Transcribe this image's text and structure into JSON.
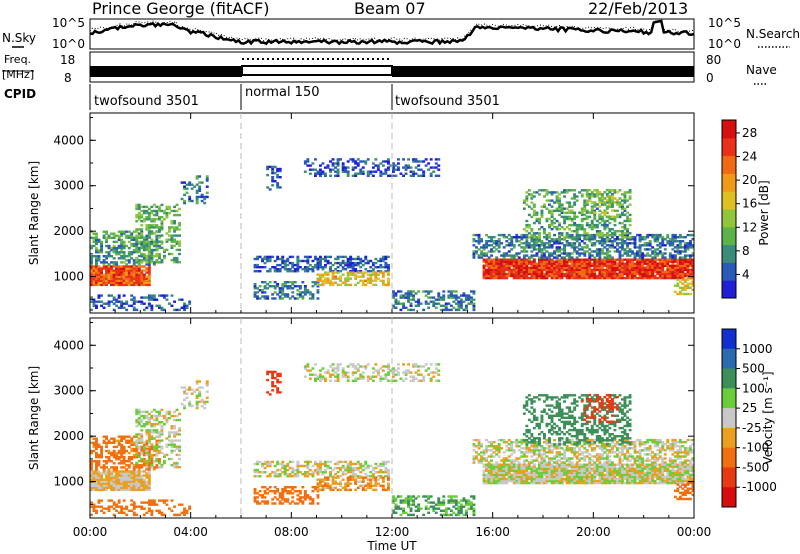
{
  "header": {
    "station": "Prince George (fitACF)",
    "beam": "Beam 07",
    "date": "22/Feb/2013"
  },
  "top_panels": {
    "nsky_label": "N.Sky",
    "nsearch_label": "N.Search",
    "noise_ticks": [
      "10^5",
      "10^0"
    ],
    "freq_label_line1": "Freq.",
    "freq_label_line2": "[MHz]",
    "freq_ticks": [
      "18",
      "8"
    ],
    "nave_label": "Nave",
    "nave_ticks": [
      "80",
      "0"
    ],
    "cpid_label": "CPID",
    "cpid_segments": [
      {
        "label": "twofsound 3501",
        "start": 0,
        "end": 6
      },
      {
        "label": "normal 150",
        "start": 6,
        "end": 12
      },
      {
        "label": "twofsound 3501",
        "start": 12,
        "end": 24
      }
    ]
  },
  "chart_data": [
    {
      "type": "heatmap",
      "ylabel": "Slant Range [km]",
      "xlabel": "Time UT",
      "xlim": [
        0,
        24
      ],
      "ylim": [
        200,
        4600
      ],
      "yticks": [
        "1000",
        "2000",
        "3000",
        "4000"
      ],
      "xticks": [
        "00:00",
        "04:00",
        "08:00",
        "12:00",
        "16:00",
        "20:00",
        "00:00"
      ],
      "colorbar": {
        "label": "Power [dB]",
        "ticks": [
          "4",
          "8",
          "12",
          "16",
          "20",
          "24",
          "28"
        ],
        "colors": [
          "#1f1fd6",
          "#2a5ab8",
          "#3a8b7a",
          "#5cb34a",
          "#8fc63c",
          "#e0c020",
          "#f09a18",
          "#f06a14",
          "#e8301a",
          "#d80f0f"
        ]
      }
    },
    {
      "type": "heatmap",
      "ylabel": "Slant Range [km]",
      "xlabel": "Time UT",
      "xlim": [
        0,
        24
      ],
      "ylim": [
        200,
        4600
      ],
      "yticks": [
        "1000",
        "2000",
        "3000",
        "4000"
      ],
      "xticks": [
        "00:00",
        "04:00",
        "08:00",
        "12:00",
        "16:00",
        "20:00",
        "00:00"
      ],
      "colorbar": {
        "label": "Velocity [m s⁻¹]",
        "ticks": [
          "1000",
          "500",
          "100",
          "25",
          "-25",
          "-100",
          "-500",
          "-1000"
        ],
        "colors": [
          "#1030d0",
          "#2a6ab0",
          "#3d8f5a",
          "#6acd3a",
          "#c8c8c8",
          "#e9a020",
          "#f07010",
          "#e83a12",
          "#d80c0c"
        ]
      }
    }
  ],
  "echo_regions": [
    {
      "t0": 0.0,
      "t1": 2.4,
      "r0": 800,
      "r1": 1250,
      "power": 24,
      "velocity": -40,
      "density": 0.95
    },
    {
      "t0": 0.0,
      "t1": 2.8,
      "r0": 1250,
      "r1": 2000,
      "power": 10,
      "velocity": -150,
      "density": 0.55
    },
    {
      "t0": 1.8,
      "t1": 3.6,
      "r0": 1300,
      "r1": 2600,
      "power": 12,
      "velocity": 10,
      "density": 0.45
    },
    {
      "t0": 3.6,
      "t1": 4.6,
      "r0": 2600,
      "r1": 3200,
      "power": 8,
      "velocity": 0,
      "density": 0.3
    },
    {
      "t0": 0.0,
      "t1": 4.0,
      "r0": 250,
      "r1": 600,
      "power": 6,
      "velocity": -200,
      "density": 0.35
    },
    {
      "t0": 6.5,
      "t1": 11.8,
      "r0": 1100,
      "r1": 1450,
      "power": 6,
      "velocity": 0,
      "density": 0.55
    },
    {
      "t0": 6.5,
      "t1": 9.0,
      "r0": 500,
      "r1": 900,
      "power": 8,
      "velocity": -200,
      "density": 0.5
    },
    {
      "t0": 9.0,
      "t1": 11.8,
      "r0": 800,
      "r1": 1100,
      "power": 18,
      "velocity": -80,
      "density": 0.55
    },
    {
      "t0": 7.0,
      "t1": 7.5,
      "r0": 2900,
      "r1": 3400,
      "power": 6,
      "velocity": -800,
      "density": 0.45
    },
    {
      "t0": 8.5,
      "t1": 13.8,
      "r0": 3200,
      "r1": 3600,
      "power": 6,
      "velocity": 0,
      "density": 0.35
    },
    {
      "t0": 12.0,
      "t1": 15.2,
      "r0": 250,
      "r1": 700,
      "power": 8,
      "velocity": 110,
      "density": 0.45
    },
    {
      "t0": 15.6,
      "t1": 24.0,
      "r0": 950,
      "r1": 1400,
      "power": 26,
      "velocity": 0,
      "density": 0.95
    },
    {
      "t0": 15.2,
      "t1": 24.0,
      "r0": 1400,
      "r1": 1900,
      "power": 8,
      "velocity": 0,
      "density": 0.55
    },
    {
      "t0": 17.2,
      "t1": 21.5,
      "r0": 1800,
      "r1": 2900,
      "power": 11,
      "velocity": 300,
      "density": 0.4
    },
    {
      "t0": 19.5,
      "t1": 21.0,
      "r0": 2300,
      "r1": 2900,
      "power": 14,
      "velocity": -600,
      "density": 0.35
    },
    {
      "t0": 23.2,
      "t1": 24.0,
      "r0": 600,
      "r1": 1000,
      "power": 18,
      "velocity": -300,
      "density": 0.6
    }
  ]
}
